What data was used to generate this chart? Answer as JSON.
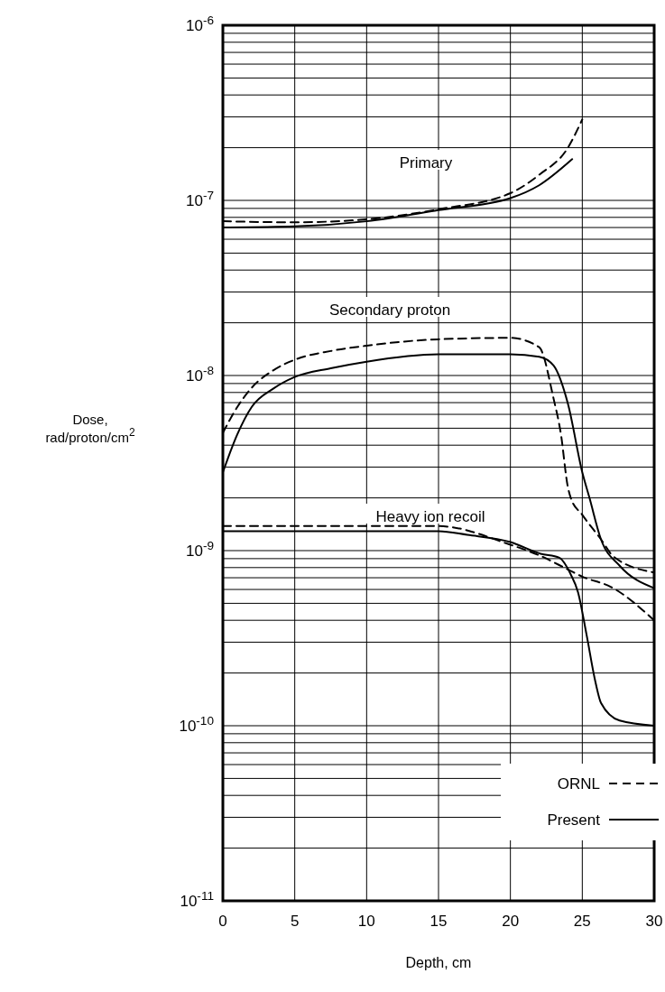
{
  "chart_data": {
    "type": "line",
    "xlabel": "Depth, cm",
    "ylabel": "Dose,\nrad/proton/cm$^{2}$",
    "log": "y",
    "grid": true,
    "legend": "bottom right",
    "xlim": [
      0,
      30
    ],
    "xticks": [
      0,
      5,
      10,
      15,
      20,
      25,
      30
    ],
    "ylim": [
      1e-11,
      1e-06
    ],
    "yticks": [
      {
        "value": 1e-11,
        "label": "10$^{-11}$"
      },
      {
        "value": 2e-11,
        "label": null
      },
      {
        "value": 3e-11,
        "label": null
      },
      {
        "value": 4e-11,
        "label": null
      },
      {
        "value": 5e-11,
        "label": null
      },
      {
        "value": 6e-11,
        "label": null
      },
      {
        "value": 7e-11,
        "label": null
      },
      {
        "value": 8e-11,
        "label": null
      },
      {
        "value": 9e-11,
        "label": null
      },
      {
        "value": 1e-10,
        "label": "10$^{-10}$"
      },
      {
        "value": 2e-10,
        "label": null
      },
      {
        "value": 3e-10,
        "label": null
      },
      {
        "value": 4e-10,
        "label": null
      },
      {
        "value": 5e-10,
        "label": null
      },
      {
        "value": 6e-10,
        "label": null
      },
      {
        "value": 7e-10,
        "label": null
      },
      {
        "value": 8e-10,
        "label": null
      },
      {
        "value": 9e-10,
        "label": null
      },
      {
        "value": 1e-09,
        "label": "10$^{-9}$"
      },
      {
        "value": 2e-09,
        "label": null
      },
      {
        "value": 3e-09,
        "label": null
      },
      {
        "value": 4e-09,
        "label": null
      },
      {
        "value": 5e-09,
        "label": null
      },
      {
        "value": 6e-09,
        "label": null
      },
      {
        "value": 7e-09,
        "label": null
      },
      {
        "value": 8e-09,
        "label": null
      },
      {
        "value": 9e-09,
        "label": null
      },
      {
        "value": 1e-08,
        "label": "10$^{-8}$"
      },
      {
        "value": 2e-08,
        "label": null
      },
      {
        "value": 3e-08,
        "label": null
      },
      {
        "value": 4e-08,
        "label": null
      },
      {
        "value": 5e-08,
        "label": null
      },
      {
        "value": 6e-08,
        "label": null
      },
      {
        "value": 7e-08,
        "label": null
      },
      {
        "value": 8e-08,
        "label": null
      },
      {
        "value": 9e-08,
        "label": null
      },
      {
        "value": 1e-07,
        "label": "10$^{-7}$"
      },
      {
        "value": 2e-07,
        "label": null
      },
      {
        "value": 3e-07,
        "label": null
      },
      {
        "value": 4e-07,
        "label": null
      },
      {
        "value": 5e-07,
        "label": null
      },
      {
        "value": 6e-07,
        "label": null
      },
      {
        "value": 7e-07,
        "label": null
      },
      {
        "value": 8e-07,
        "label": null
      },
      {
        "value": 9e-07,
        "label": null
      },
      {
        "value": 1e-06,
        "label": "10$^{-6}$"
      }
    ],
    "annotations": [
      "Primary",
      "Secondary proton",
      "Heavy ion recoil"
    ],
    "series": [
      {
        "name": "ORNL",
        "color": "#000000",
        "line_style": "dashed",
        "x": [
          0,
          5,
          10,
          15,
          20,
          22,
          24,
          25
        ],
        "values": [
          7.6e-08,
          7.5e-08,
          7.8e-08,
          8.9e-08,
          1.1e-07,
          1.4e-07,
          2e-07,
          2.9e-07
        ]
      },
      {
        "name": "Present",
        "color": "#000000",
        "line_style": "solid",
        "x": [
          0,
          5,
          10,
          15,
          20,
          22,
          24.3
        ],
        "values": [
          7e-08,
          7.1e-08,
          7.6e-08,
          8.8e-08,
          1.03e-07,
          1.22e-07,
          1.72e-07
        ]
      },
      {
        "color": "#000000",
        "line_style": "dashed",
        "x": [
          0,
          1,
          2,
          3.5,
          5,
          7.5,
          10,
          15,
          20,
          22,
          23,
          23.5,
          24,
          24.2,
          25,
          26.3,
          27.2,
          30
        ],
        "values": [
          4.7e-09,
          6.6e-09,
          8.5e-09,
          1.07e-08,
          1.23e-08,
          1.38e-08,
          1.48e-08,
          1.61e-08,
          1.64e-08,
          1.45e-08,
          7.4e-09,
          4.7e-09,
          2.3e-09,
          2e-09,
          1.6e-09,
          1.16e-09,
          9.2e-10,
          7.5e-10
        ]
      },
      {
        "color": "#000000",
        "line_style": "solid",
        "x": [
          0,
          1,
          2,
          3.5,
          5,
          7.5,
          10,
          15,
          20,
          22,
          23,
          24,
          25,
          25.5,
          26.3,
          27.6,
          30
        ],
        "values": [
          2.8e-09,
          4.6e-09,
          6.6e-09,
          8.4e-09,
          9.8e-09,
          1.1e-08,
          1.2e-08,
          1.32e-08,
          1.32e-08,
          1.28e-08,
          1.14e-08,
          6.9e-09,
          2.8e-09,
          2e-09,
          1.16e-09,
          8.2e-10,
          6.1e-10
        ]
      },
      {
        "color": "#000000",
        "line_style": "dashed",
        "x": [
          0,
          15,
          20,
          22,
          24,
          25,
          27,
          30
        ],
        "values": [
          1.38e-09,
          1.38e-09,
          1.08e-09,
          9.4e-10,
          7.8e-10,
          7.1e-10,
          6.2e-10,
          4e-10
        ]
      },
      {
        "color": "#000000",
        "line_style": "solid",
        "x": [
          0,
          15,
          17,
          20,
          22.1,
          23.4,
          24.2,
          24.7,
          25.3,
          25.9,
          26.3,
          27.6,
          30
        ],
        "values": [
          1.29e-09,
          1.29e-09,
          1.23e-09,
          1.12e-09,
          9.6e-10,
          9.1e-10,
          7.3e-10,
          5.8e-10,
          3.3e-10,
          1.8e-10,
          1.35e-10,
          1.07e-10,
          1e-10
        ]
      }
    ]
  }
}
